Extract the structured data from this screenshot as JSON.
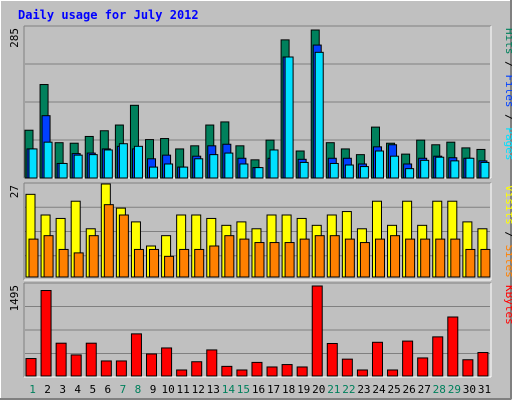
{
  "title": "Daily usage for July 2012",
  "colors": {
    "background": "#c0c0c0",
    "title": "#0000ff",
    "hits": "#00805c",
    "files": "#0040ff",
    "pages": "#00e0ff",
    "visits": "#ffff00",
    "sites": "#ff8000",
    "kbytes": "#ff0000",
    "weekend_day": "#00805c",
    "weekday": "#000000"
  },
  "chart_data": [
    {
      "type": "bar",
      "categories": [
        "1",
        "2",
        "3",
        "4",
        "5",
        "6",
        "7",
        "8",
        "9",
        "10",
        "11",
        "12",
        "13",
        "14",
        "15",
        "16",
        "17",
        "18",
        "19",
        "20",
        "21",
        "22",
        "23",
        "24",
        "25",
        "26",
        "27",
        "28",
        "29",
        "30",
        "31"
      ],
      "y_max_label": "285",
      "legend": [
        "Pages",
        "Files",
        "Hits"
      ],
      "series": [
        {
          "name": "Hits",
          "values": [
            92,
            180,
            68,
            67,
            80,
            91,
            102,
            140,
            74,
            76,
            56,
            62,
            102,
            108,
            62,
            35,
            73,
            266,
            52,
            285,
            68,
            56,
            45,
            98,
            67,
            46,
            73,
            64,
            69,
            58,
            55
          ]
        },
        {
          "name": "Files",
          "values": [
            56,
            120,
            28,
            47,
            48,
            56,
            61,
            56,
            37,
            44,
            21,
            42,
            62,
            65,
            38,
            20,
            38,
            233,
            36,
            256,
            38,
            38,
            27,
            60,
            64,
            27,
            38,
            42,
            39,
            38,
            33
          ]
        },
        {
          "name": "Pages",
          "values": [
            56,
            69,
            28,
            44,
            45,
            54,
            66,
            61,
            21,
            27,
            21,
            37,
            45,
            48,
            27,
            20,
            54,
            233,
            30,
            242,
            28,
            25,
            22,
            52,
            42,
            18,
            34,
            40,
            33,
            38,
            30
          ]
        }
      ]
    },
    {
      "type": "bar",
      "categories": [
        "1",
        "2",
        "3",
        "4",
        "5",
        "6",
        "7",
        "8",
        "9",
        "10",
        "11",
        "12",
        "13",
        "14",
        "15",
        "16",
        "17",
        "18",
        "19",
        "20",
        "21",
        "22",
        "23",
        "24",
        "25",
        "26",
        "27",
        "28",
        "29",
        "30",
        "31"
      ],
      "y_max_label": "27",
      "legend": [
        "Sites",
        "Visits"
      ],
      "series": [
        {
          "name": "Visits",
          "values": [
            24,
            18,
            17,
            22,
            14,
            27,
            20,
            16,
            9,
            12,
            18,
            18,
            17,
            15,
            16,
            14,
            18,
            18,
            17,
            15,
            18,
            19,
            14,
            22,
            15,
            22,
            15,
            22,
            22,
            16,
            14
          ]
        },
        {
          "name": "Sites",
          "values": [
            11,
            12,
            8,
            7,
            12,
            21,
            18,
            8,
            8,
            6,
            8,
            8,
            9,
            12,
            11,
            10,
            10,
            10,
            11,
            12,
            12,
            11,
            10,
            11,
            12,
            11,
            11,
            11,
            11,
            8,
            8
          ]
        }
      ]
    },
    {
      "type": "bar",
      "categories": [
        "1",
        "2",
        "3",
        "4",
        "5",
        "6",
        "7",
        "8",
        "9",
        "10",
        "11",
        "12",
        "13",
        "14",
        "15",
        "16",
        "17",
        "18",
        "19",
        "20",
        "21",
        "22",
        "23",
        "24",
        "25",
        "26",
        "27",
        "28",
        "29",
        "30",
        "31"
      ],
      "y_max_label": "1495",
      "legend": [
        "KBytes"
      ],
      "series": [
        {
          "name": "KBytes",
          "values": [
            290,
            1420,
            545,
            350,
            545,
            250,
            250,
            700,
            366,
            466,
            100,
            237,
            433,
            160,
            100,
            226,
            150,
            190,
            150,
            1495,
            540,
            280,
            100,
            560,
            100,
            580,
            300,
            650,
            980,
            270,
            390
          ]
        }
      ]
    }
  ],
  "weekend_days": [
    1,
    7,
    8,
    14,
    15,
    21,
    22,
    28,
    29
  ]
}
